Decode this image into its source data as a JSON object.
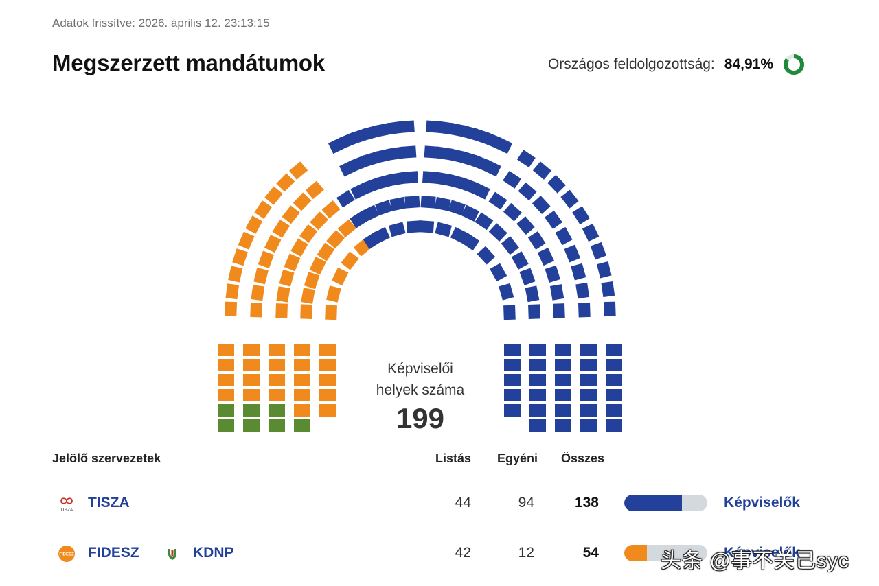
{
  "header": {
    "updated": "Adatok frissítve: 2026. április 12. 23:13:15",
    "title": "Megszerzett mandátumok",
    "progress_label": "Országos feldolgozottság:",
    "progress_value": "84,91%",
    "progress_fraction": 0.8491
  },
  "hemicycle": {
    "center_label_1": "Képviselői",
    "center_label_2": "helyek száma",
    "total_seats": "199",
    "seats": {
      "tisza": 138,
      "fidesz": 54,
      "kdnp_visible_in_green": 7
    },
    "colors": {
      "tisza": "#23409a",
      "fidesz": "#f08a1c",
      "kdnp": "#5a8a32"
    }
  },
  "table": {
    "col_org": "Jelölő szervezetek",
    "col_list": "Listás",
    "col_individual": "Egyéni",
    "col_total": "Összes",
    "rows": [
      {
        "name": "TISZA",
        "logo_text": "TISZA",
        "list": "44",
        "individual": "94",
        "total": "138",
        "share": 0.6935,
        "color": "#23409a",
        "link": "Képviselők"
      },
      {
        "name": "FIDESZ",
        "logo_text": "FIDESZ",
        "partner": "KDNP",
        "list": "42",
        "individual": "12",
        "total": "54",
        "share": 0.2714,
        "color": "#f08a1c",
        "link": "Képviselők"
      }
    ]
  },
  "watermark": "头条 @事不关己syc"
}
